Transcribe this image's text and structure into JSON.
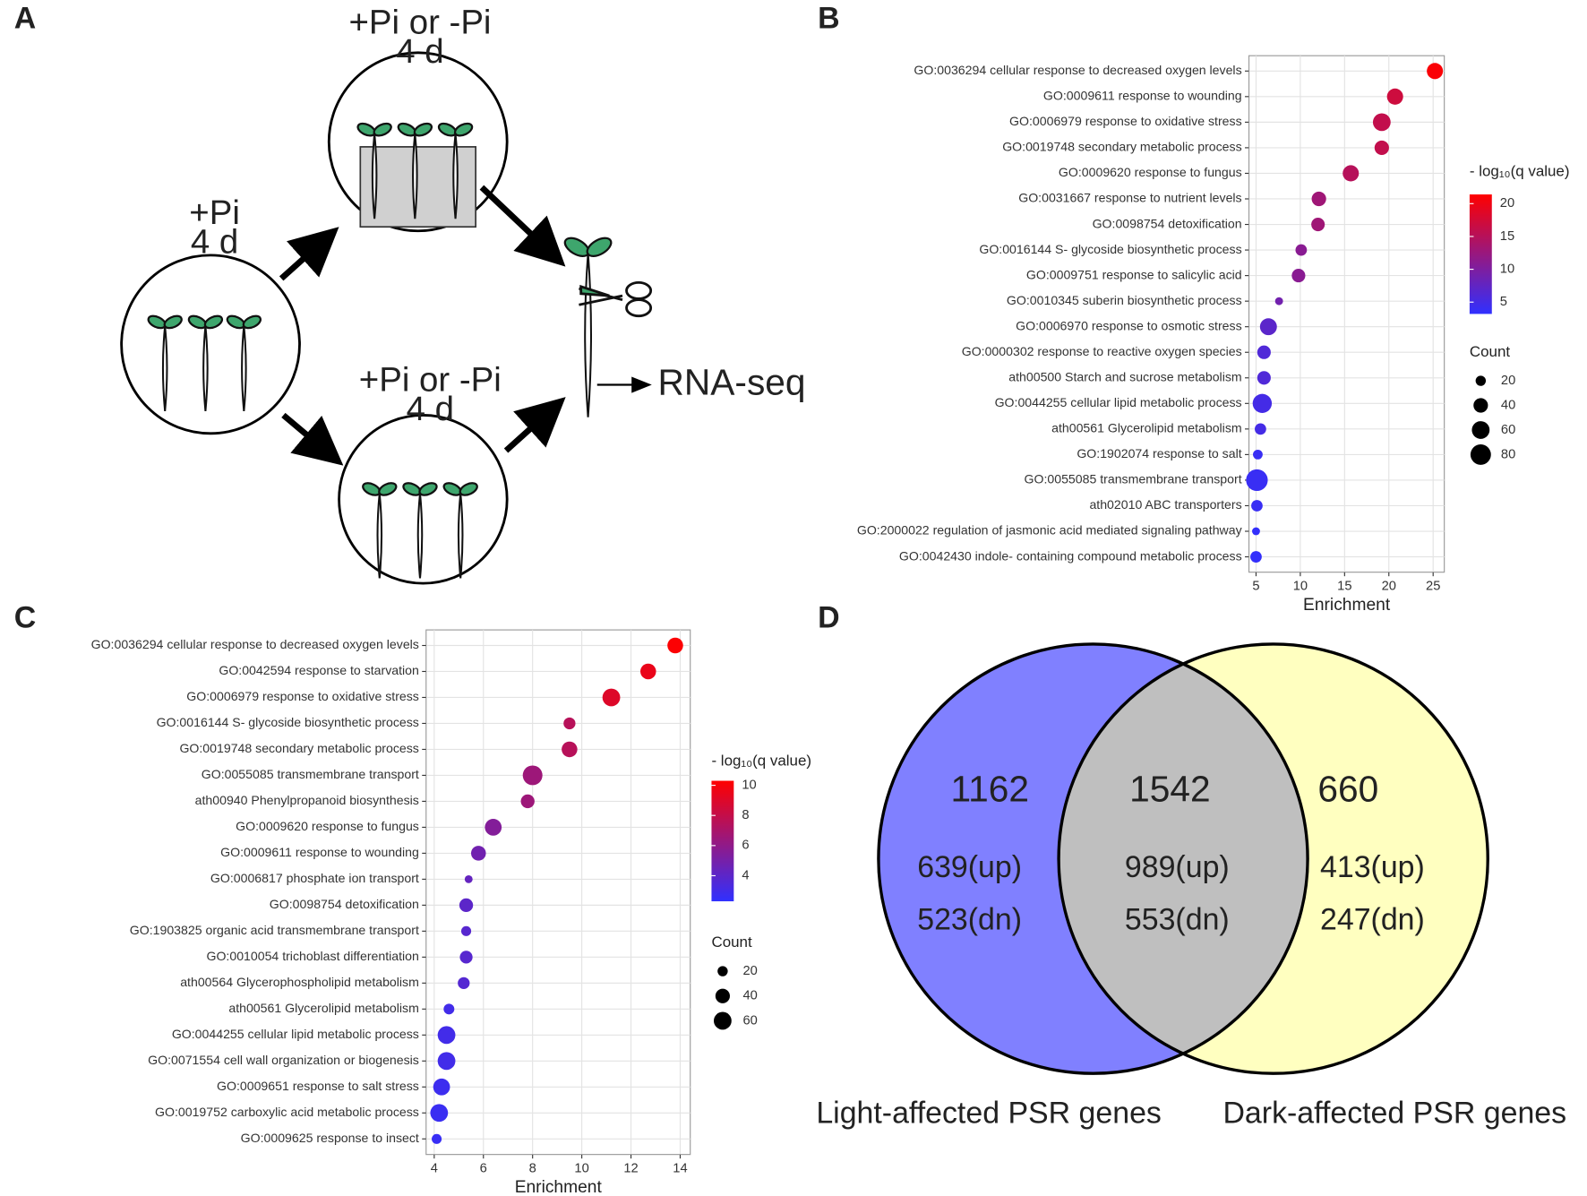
{
  "chart_data": [
    {
      "type": "bubble",
      "panel_label": "B",
      "categories": [
        "GO:0036294 cellular response to decreased oxygen levels",
        "GO:0009611 response to wounding",
        "GO:0006979 response to oxidative stress",
        "GO:0019748 secondary metabolic process",
        "GO:0009620 response to fungus",
        "GO:0031667 response to nutrient levels",
        "GO:0098754 detoxification",
        "GO:0016144 S- glycoside biosynthetic process",
        "GO:0009751 response to salicylic acid",
        "GO:0010345 suberin biosynthetic process",
        "GO:0006970 response to osmotic stress",
        "GO:0000302 response to reactive oxygen species",
        "ath00500 Starch and sucrose metabolism",
        "GO:0044255 cellular lipid metabolic process",
        "ath00561 Glycerolipid metabolism",
        "GO:1902074 response to salt",
        "GO:0055085 transmembrane transport",
        "ath02010 ABC transporters",
        "GO:2000022 regulation of jasmonic acid mediated signaling pathway",
        "GO:0042430 indole- containing compound metabolic process"
      ],
      "values": [
        25.2,
        20.7,
        19.2,
        19.2,
        15.7,
        12.1,
        12.0,
        10.1,
        9.8,
        7.6,
        6.4,
        5.9,
        5.9,
        5.7,
        5.5,
        5.2,
        5.1,
        5.1,
        5.0,
        5.0
      ],
      "sizes": [
        50,
        50,
        60,
        40,
        50,
        40,
        35,
        25,
        35,
        12,
        55,
        35,
        35,
        70,
        25,
        18,
        90,
        25,
        12,
        25
      ],
      "color_values": [
        21,
        17,
        16,
        16,
        15,
        13,
        13,
        11,
        11,
        9,
        7,
        6,
        6,
        5,
        5,
        4,
        4,
        4,
        3.5,
        3.5
      ],
      "xlabel": "Enrichment",
      "xlim": [
        4.2,
        26.26
      ],
      "xticks": [
        5,
        10,
        15,
        20,
        25
      ],
      "grid": true,
      "color_title": "- log₁₀(q value)",
      "color_lim": [
        3.2,
        21.4
      ],
      "color_ticks": [
        5,
        10,
        15,
        20
      ],
      "low_color": "#3030ff",
      "high_color": "#ff0000",
      "size_title": "Count",
      "size_ticks": [
        20,
        40,
        60,
        80
      ]
    },
    {
      "type": "bubble",
      "panel_label": "C",
      "categories": [
        "GO:0036294 cellular response to decreased oxygen levels",
        "GO:0042594 response to starvation",
        "GO:0006979 response to oxidative stress",
        "GO:0016144 S- glycoside biosynthetic process",
        "GO:0019748 secondary metabolic process",
        "GO:0055085 transmembrane transport",
        "ath00940 Phenylpropanoid biosynthesis",
        "GO:0009620 response to fungus",
        "GO:0009611 response to wounding",
        "GO:0006817 phosphate ion transport",
        "GO:0098754 detoxification",
        "GO:1903825 organic acid transmembrane transport",
        "GO:0010054 trichoblast differentiation",
        "ath00564 Glycerophospholipid metabolism",
        "ath00561 Glycerolipid metabolism",
        "GO:0044255 cellular lipid metabolic process",
        "GO:0071554 cell wall organization or biogenesis",
        "GO:0009651 response to salt stress",
        "GO:0019752 carboxylic acid metabolic process",
        "GO:0009625 response to insect"
      ],
      "values": [
        13.8,
        12.7,
        11.2,
        9.5,
        9.5,
        8.0,
        7.8,
        6.4,
        5.8,
        5.4,
        5.3,
        5.3,
        5.3,
        5.2,
        4.6,
        4.5,
        4.5,
        4.3,
        4.2,
        4.1
      ],
      "sizes": [
        47,
        47,
        60,
        27,
        47,
        74,
        36,
        54,
        42,
        12,
        36,
        19,
        31,
        27,
        22,
        60,
        60,
        54,
        60,
        19
      ],
      "color_values": [
        10.2,
        9.5,
        9,
        7.5,
        7.5,
        6.5,
        6.5,
        5.5,
        4.8,
        4.3,
        4,
        3.8,
        3.8,
        3.7,
        3,
        3,
        3,
        2.8,
        2.7,
        2.6
      ],
      "xlabel": "Enrichment",
      "xlim": [
        3.67,
        14.41
      ],
      "xticks": [
        4,
        6,
        8,
        10,
        12,
        14
      ],
      "grid": true,
      "color_title": "- log₁₀(q value)",
      "color_lim": [
        2.3,
        10.3
      ],
      "color_ticks": [
        4,
        6,
        8,
        10
      ],
      "low_color": "#3030ff",
      "high_color": "#ff0000",
      "size_title": "Count",
      "size_ticks": [
        20,
        40,
        60
      ]
    }
  ],
  "panel_a": {
    "label": "A",
    "start": {
      "condition": "+Pi",
      "duration": "4 d"
    },
    "top": {
      "condition": "+Pi or -Pi",
      "duration": "4 d"
    },
    "bottom": {
      "condition": "+Pi or -Pi",
      "duration": "4 d"
    },
    "output": "RNA-seq"
  },
  "panel_d": {
    "label": "D",
    "left": {
      "name": "Light-affected PSR genes",
      "total": 1162,
      "up": "639(up)",
      "down": "523(dn)"
    },
    "overlap": {
      "total": 1542,
      "up": "989(up)",
      "down": "553(dn)"
    },
    "right": {
      "name": "Dark-affected PSR genes",
      "total": 660,
      "up": "413(up)",
      "down": "247(dn)"
    }
  }
}
